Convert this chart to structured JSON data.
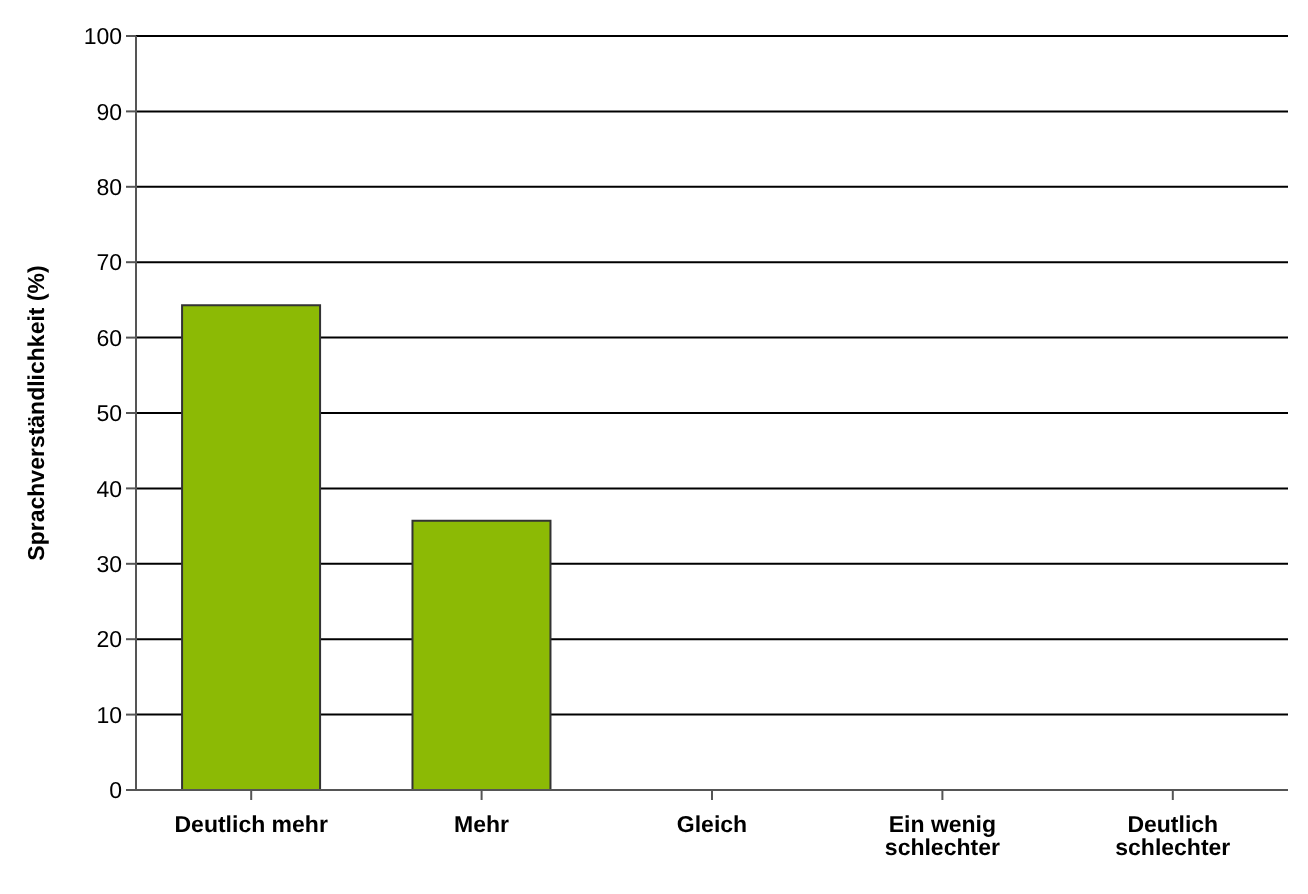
{
  "chart_data": {
    "type": "bar",
    "ylabel": "Sprachverständlichkeit (%)",
    "categories": [
      "Deutlich mehr",
      "Mehr",
      "Gleich",
      "Ein wenig schlechter",
      "Deutlich schlechter"
    ],
    "values": [
      64.3,
      35.7,
      0,
      0,
      0
    ],
    "color": "#8cba05",
    "ylim": [
      0,
      100
    ],
    "yticks": [
      0,
      10,
      20,
      30,
      40,
      50,
      60,
      70,
      80,
      90,
      100
    ],
    "grid": "y"
  }
}
